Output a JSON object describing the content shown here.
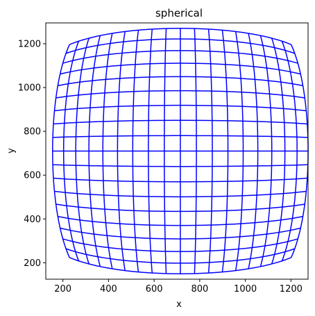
{
  "chart_data": {
    "type": "line",
    "title": "spherical",
    "xlabel": "x",
    "ylabel": "y",
    "xlim": [
      125,
      1275
    ],
    "ylim": [
      125,
      1295
    ],
    "xticks": [
      200,
      400,
      600,
      800,
      1000,
      1200
    ],
    "yticks": [
      200,
      400,
      600,
      800,
      1000,
      1200
    ],
    "grid": false,
    "series_color": "#0000ff",
    "mesh": {
      "center": [
        715,
        710
      ],
      "grid_half_extent": 450,
      "divisions": 18,
      "distortion_k": 0.6
    }
  }
}
